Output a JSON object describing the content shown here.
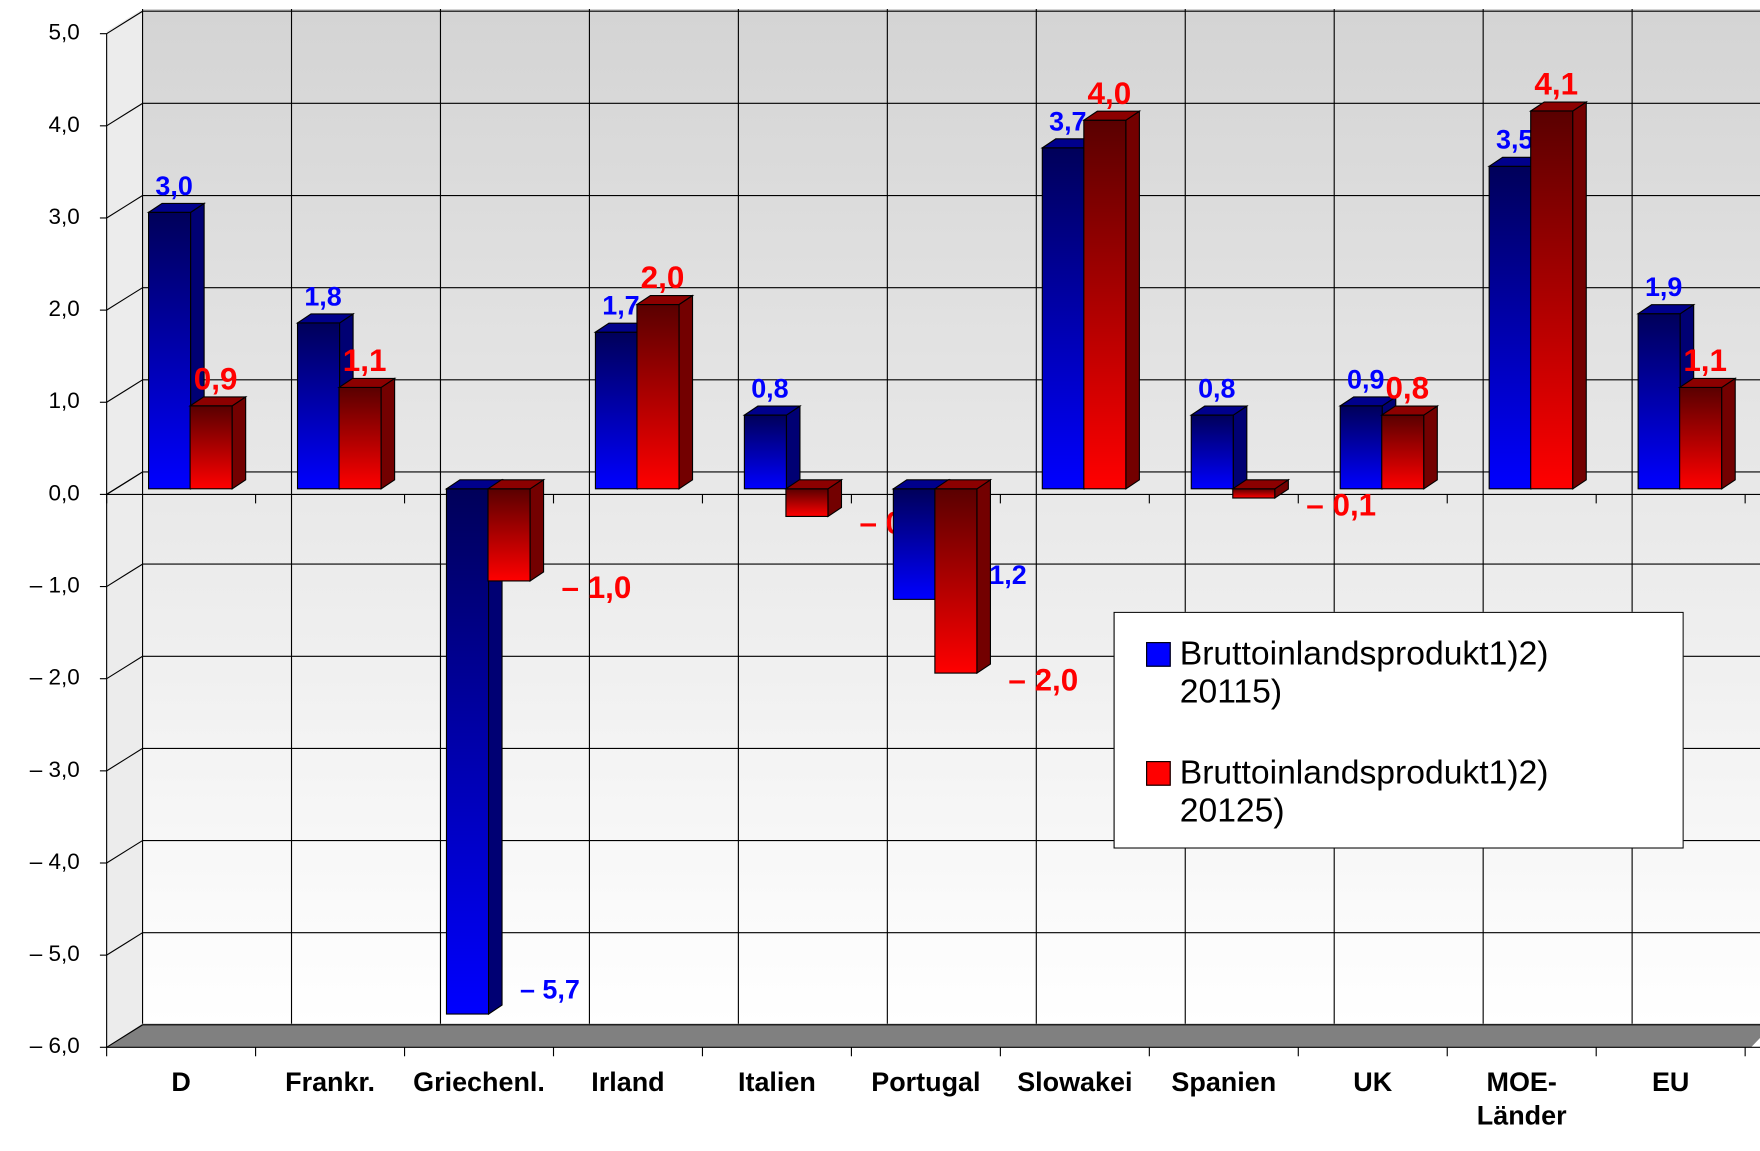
{
  "chart_data": {
    "type": "bar",
    "categories": [
      "D",
      "Frankr.",
      "Griechenl.",
      "Irland",
      "Italien",
      "Portugal",
      "Slowakei",
      "Spanien",
      "UK",
      "MOE-Länder",
      "EU"
    ],
    "series": [
      {
        "name": "Bruttoinlandsprodukt1)2) 20115)",
        "color": "#0000ff",
        "values": [
          3.0,
          1.8,
          -5.7,
          1.7,
          0.8,
          -1.2,
          3.7,
          0.8,
          0.9,
          3.5,
          1.9
        ],
        "value_labels": [
          "3,0",
          "1,8",
          "– 5,7",
          "1,7",
          "0,8",
          "– 1,2",
          "3,7",
          "0,8",
          "0,9",
          "3,5",
          "1,9"
        ]
      },
      {
        "name": "Bruttoinlandsprodukt1)2) 20125)",
        "color": "#ff0000",
        "values": [
          0.9,
          1.1,
          -1.0,
          2.0,
          -0.3,
          -2.0,
          4.0,
          -0.1,
          0.8,
          4.1,
          1.1
        ],
        "value_labels": [
          "0,9",
          "1,1",
          "– 1,0",
          "2,0",
          "– 0,3",
          "– 2,0",
          "4,0",
          "– 0,1",
          "0,8",
          "4,1",
          "1,1"
        ]
      }
    ],
    "ylim": [
      -6,
      5
    ],
    "yticks": [
      {
        "value": 5,
        "label": "5,0"
      },
      {
        "value": 4,
        "label": "4,0"
      },
      {
        "value": 3,
        "label": "3,0"
      },
      {
        "value": 2,
        "label": "2,0"
      },
      {
        "value": 1,
        "label": "1,0"
      },
      {
        "value": 0,
        "label": "0,0"
      },
      {
        "value": -1,
        "label": "– 1,0"
      },
      {
        "value": -2,
        "label": "– 2,0"
      },
      {
        "value": -3,
        "label": "– 3,0"
      },
      {
        "value": -4,
        "label": "– 4,0"
      },
      {
        "value": -5,
        "label": "– 5,0"
      },
      {
        "value": -6,
        "label": "– 6,0"
      }
    ],
    "grid": true,
    "legend": "right"
  }
}
